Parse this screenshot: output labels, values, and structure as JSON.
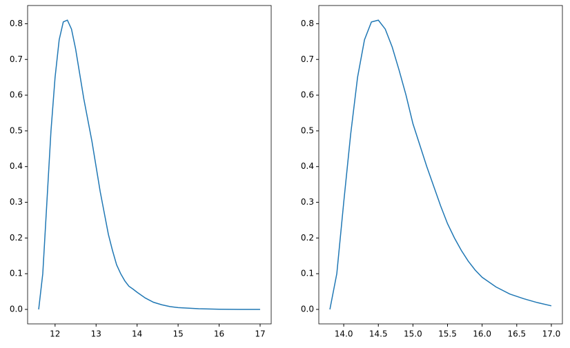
{
  "chart_data": [
    {
      "type": "line",
      "color": "#1f77b4",
      "x": [
        11.6,
        11.7,
        11.8,
        11.9,
        12.0,
        12.1,
        12.2,
        12.3,
        12.4,
        12.5,
        12.6,
        12.7,
        12.8,
        12.9,
        13.0,
        13.1,
        13.2,
        13.3,
        13.4,
        13.5,
        13.6,
        13.7,
        13.8,
        13.9,
        14.0,
        14.2,
        14.4,
        14.6,
        14.8,
        15.0,
        15.5,
        16.0,
        16.5,
        17.0
      ],
      "values": [
        0,
        0.1,
        0.3,
        0.5,
        0.65,
        0.755,
        0.805,
        0.81,
        0.785,
        0.73,
        0.66,
        0.59,
        0.53,
        0.47,
        0.4,
        0.33,
        0.27,
        0.21,
        0.165,
        0.125,
        0.1,
        0.08,
        0.065,
        0.057,
        0.048,
        0.032,
        0.02,
        0.013,
        0.008,
        0.005,
        0.002,
        0.0005,
        0.0001,
        0
      ],
      "xlim": [
        11.33,
        17.27
      ],
      "ylim": [
        -0.0405,
        0.851
      ],
      "xticks": [
        12,
        13,
        14,
        15,
        16,
        17
      ],
      "yticks": [
        {
          "value": 0,
          "label": "0.0"
        },
        0.1,
        0.2,
        0.3,
        0.4,
        0.5,
        0.6,
        0.7,
        0.8
      ]
    },
    {
      "type": "line",
      "color": "#1f77b4",
      "x": [
        13.8,
        13.9,
        14.0,
        14.1,
        14.2,
        14.3,
        14.4,
        14.5,
        14.6,
        14.7,
        14.8,
        14.9,
        15.0,
        15.1,
        15.2,
        15.3,
        15.4,
        15.5,
        15.6,
        15.7,
        15.8,
        15.9,
        16.0,
        16.2,
        16.4,
        16.6,
        16.8,
        17.0
      ],
      "values": [
        0,
        0.1,
        0.3,
        0.49,
        0.65,
        0.755,
        0.805,
        0.81,
        0.785,
        0.735,
        0.67,
        0.6,
        0.52,
        0.46,
        0.4,
        0.345,
        0.29,
        0.24,
        0.2,
        0.165,
        0.135,
        0.11,
        0.09,
        0.063,
        0.043,
        0.03,
        0.019,
        0.01
      ],
      "xlim": [
        13.64,
        17.16
      ],
      "ylim": [
        -0.0405,
        0.851
      ],
      "xticks": [
        {
          "value": 14,
          "label": "14.0"
        },
        {
          "value": 14.5,
          "label": "14.5"
        },
        {
          "value": 15,
          "label": "15.0"
        },
        {
          "value": 15.5,
          "label": "15.5"
        },
        {
          "value": 16,
          "label": "16.0"
        },
        {
          "value": 16.5,
          "label": "16.5"
        },
        {
          "value": 17,
          "label": "17.0"
        }
      ],
      "yticks": [
        {
          "value": 0,
          "label": "0.0"
        },
        0.1,
        0.2,
        0.3,
        0.4,
        0.5,
        0.6,
        0.7,
        0.8
      ]
    }
  ]
}
